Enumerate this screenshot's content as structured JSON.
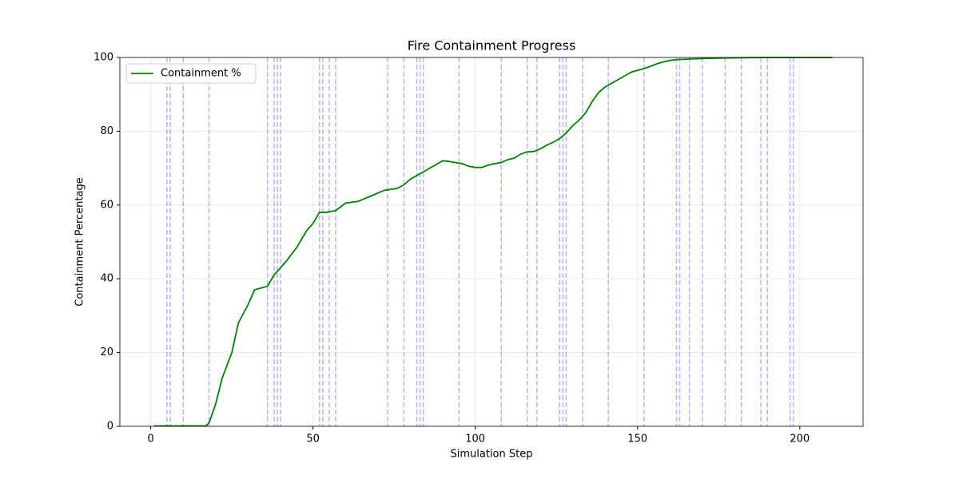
{
  "chart_data": {
    "type": "line",
    "title": "Fire Containment Progress",
    "x_label": "Simulation Step",
    "y_label": "Containment Percentage",
    "x": [
      1,
      17,
      18,
      20,
      22,
      25,
      27,
      30,
      32,
      36,
      38,
      40,
      42,
      45,
      48,
      50,
      52,
      54,
      57,
      60,
      64,
      68,
      72,
      76,
      78,
      80,
      82,
      84,
      86,
      88,
      90,
      92,
      94,
      96,
      98,
      100,
      102,
      104,
      106,
      108,
      110,
      112,
      114,
      116,
      118,
      120,
      122,
      124,
      126,
      128,
      130,
      132,
      134,
      136,
      138,
      140,
      142,
      144,
      146,
      148,
      150,
      152,
      154,
      156,
      158,
      160,
      162,
      166,
      170,
      180,
      190,
      210
    ],
    "series": [
      {
        "name": "Containment %",
        "color": "#008000",
        "values": [
          0.1,
          0.1,
          1,
          6,
          13,
          20,
          28,
          33,
          37,
          38,
          41,
          43,
          45,
          48.5,
          53,
          55,
          58,
          58,
          58.5,
          60.5,
          61,
          62.5,
          64,
          64.5,
          65.5,
          67,
          68,
          69,
          70,
          71,
          72,
          71.8,
          71.5,
          71.2,
          70.5,
          70.2,
          70.2,
          70.8,
          71.2,
          71.5,
          72.3,
          72.7,
          73.8,
          74.4,
          74.5,
          75.2,
          76.2,
          77,
          78,
          79.5,
          81.5,
          83,
          85,
          88,
          90.5,
          92,
          93,
          94,
          95,
          96,
          96.5,
          97,
          97.6,
          98.3,
          98.8,
          99.2,
          99.4,
          99.6,
          99.7,
          99.9,
          100,
          100
        ]
      }
    ],
    "event_steps": [
      5,
      6,
      10,
      18,
      36,
      38,
      39,
      40,
      52,
      53,
      55,
      57,
      73,
      78,
      82,
      83,
      84,
      95,
      108,
      116,
      119,
      126,
      127,
      128,
      133,
      141,
      152,
      162,
      163,
      166,
      170,
      177,
      182,
      188,
      190,
      197,
      198
    ],
    "event_color": "#0000ff",
    "xlim": [
      -9.5,
      219.5
    ],
    "xticks": [
      0,
      50,
      100,
      150,
      200
    ],
    "ylim": [
      0,
      100
    ],
    "yticks": [
      0,
      20,
      40,
      60,
      80,
      100
    ],
    "grid": true,
    "legend": "upper left"
  }
}
